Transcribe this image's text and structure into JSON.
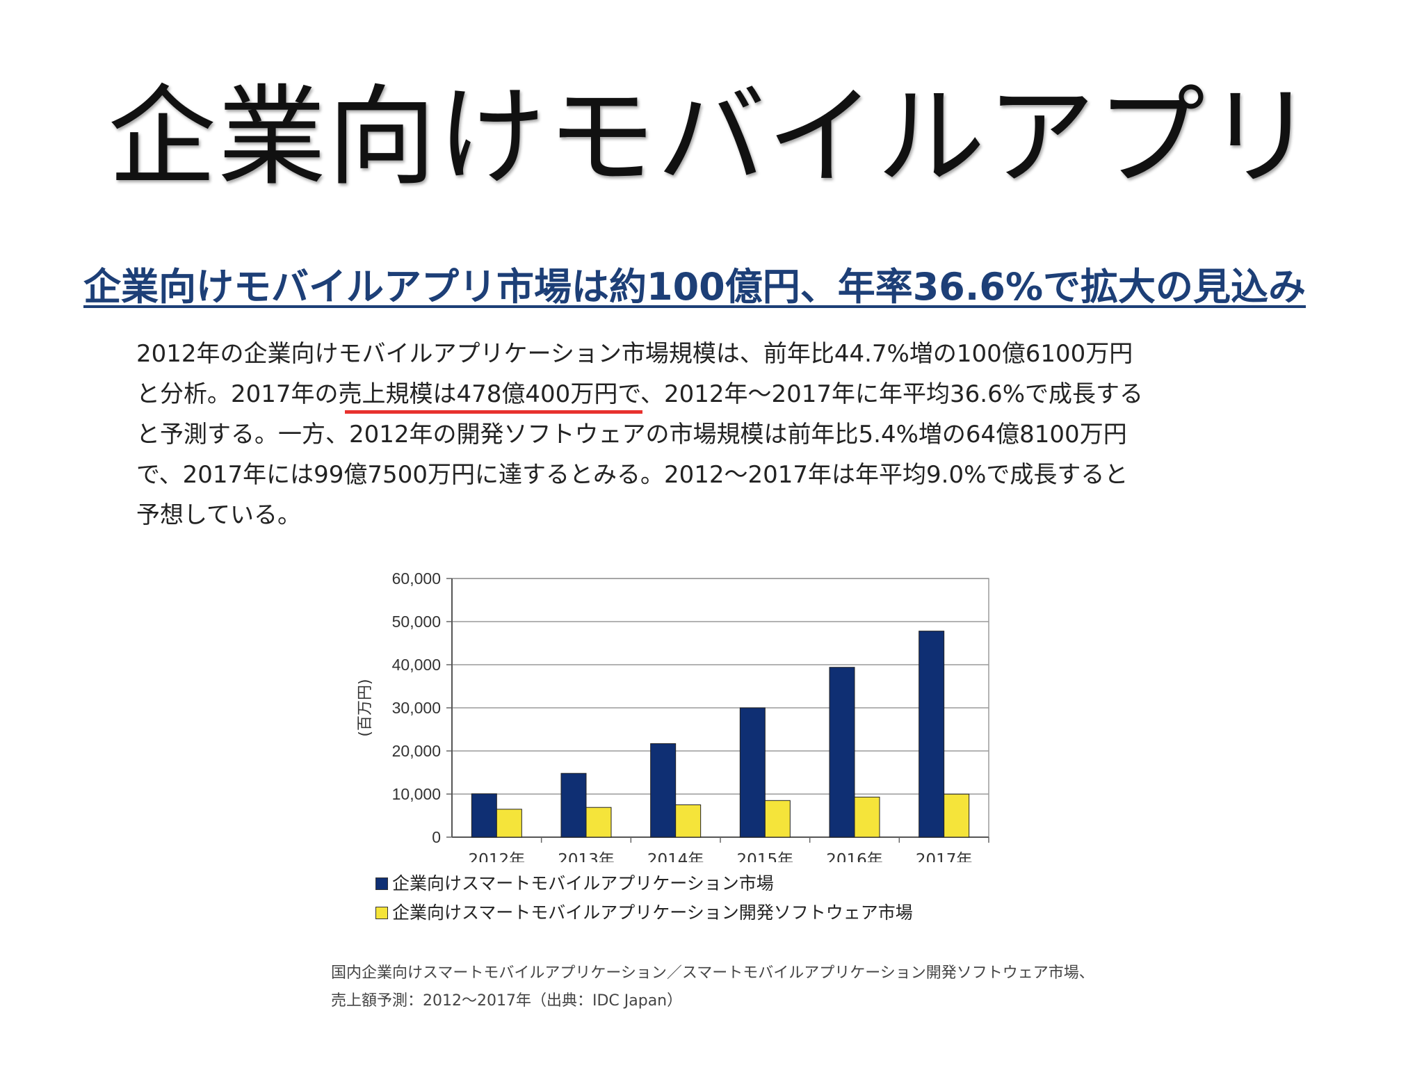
{
  "slide_title": "企業向けモバイルアプリ",
  "headline": "企業向けモバイルアプリ市場は約100億円、年率36.6%で拡大の見込み",
  "body_lines": [
    "2012年の企業向けモバイルアプリケーション市場規模は、前年比44.7%増の100億6100万円",
    "と分析。2017年の売上規模は478億400万円で、2012年〜2017年に年平均36.6%で成長する",
    "と予測する。一方、2012年の開発ソフトウェアの市場規模は前年比5.4%増の64億8100万円",
    "で、2017年には99億7500万円に達するとみる。2012〜2017年は年平均9.0%で成長すると",
    "予想している。"
  ],
  "caption_lines": [
    "国内企業向けスマートモバイルアプリケーション／スマートモバイルアプリケーション開発ソフトウェア市場、",
    "売上額予測：2012〜2017年（出典：IDC Japan）"
  ],
  "colors": {
    "headline": "#1d3f77",
    "emphasis_underline": "#e8322e",
    "series_app": "#0f2f73",
    "series_dev": "#f5e43a"
  },
  "chart_data": {
    "type": "bar",
    "categories": [
      "2012年",
      "2013年",
      "2014年",
      "2015年",
      "2016年",
      "2017年"
    ],
    "series": [
      {
        "name": "企業向けスマートモバイルアプリケーション市場",
        "values": [
          10061,
          14800,
          21700,
          30000,
          39400,
          47804
        ]
      },
      {
        "name": "企業向けスマートモバイルアプリケーション開発ソフトウェア市場",
        "values": [
          6481,
          6900,
          7500,
          8500,
          9300,
          9975
        ]
      }
    ],
    "ylabel": "(百万円)",
    "ylim": [
      0,
      60000
    ],
    "yticks": [
      "0",
      "10,000",
      "20,000",
      "30,000",
      "40,000",
      "50,000",
      "60,000"
    ],
    "grid": true,
    "legend_position": "bottom"
  }
}
